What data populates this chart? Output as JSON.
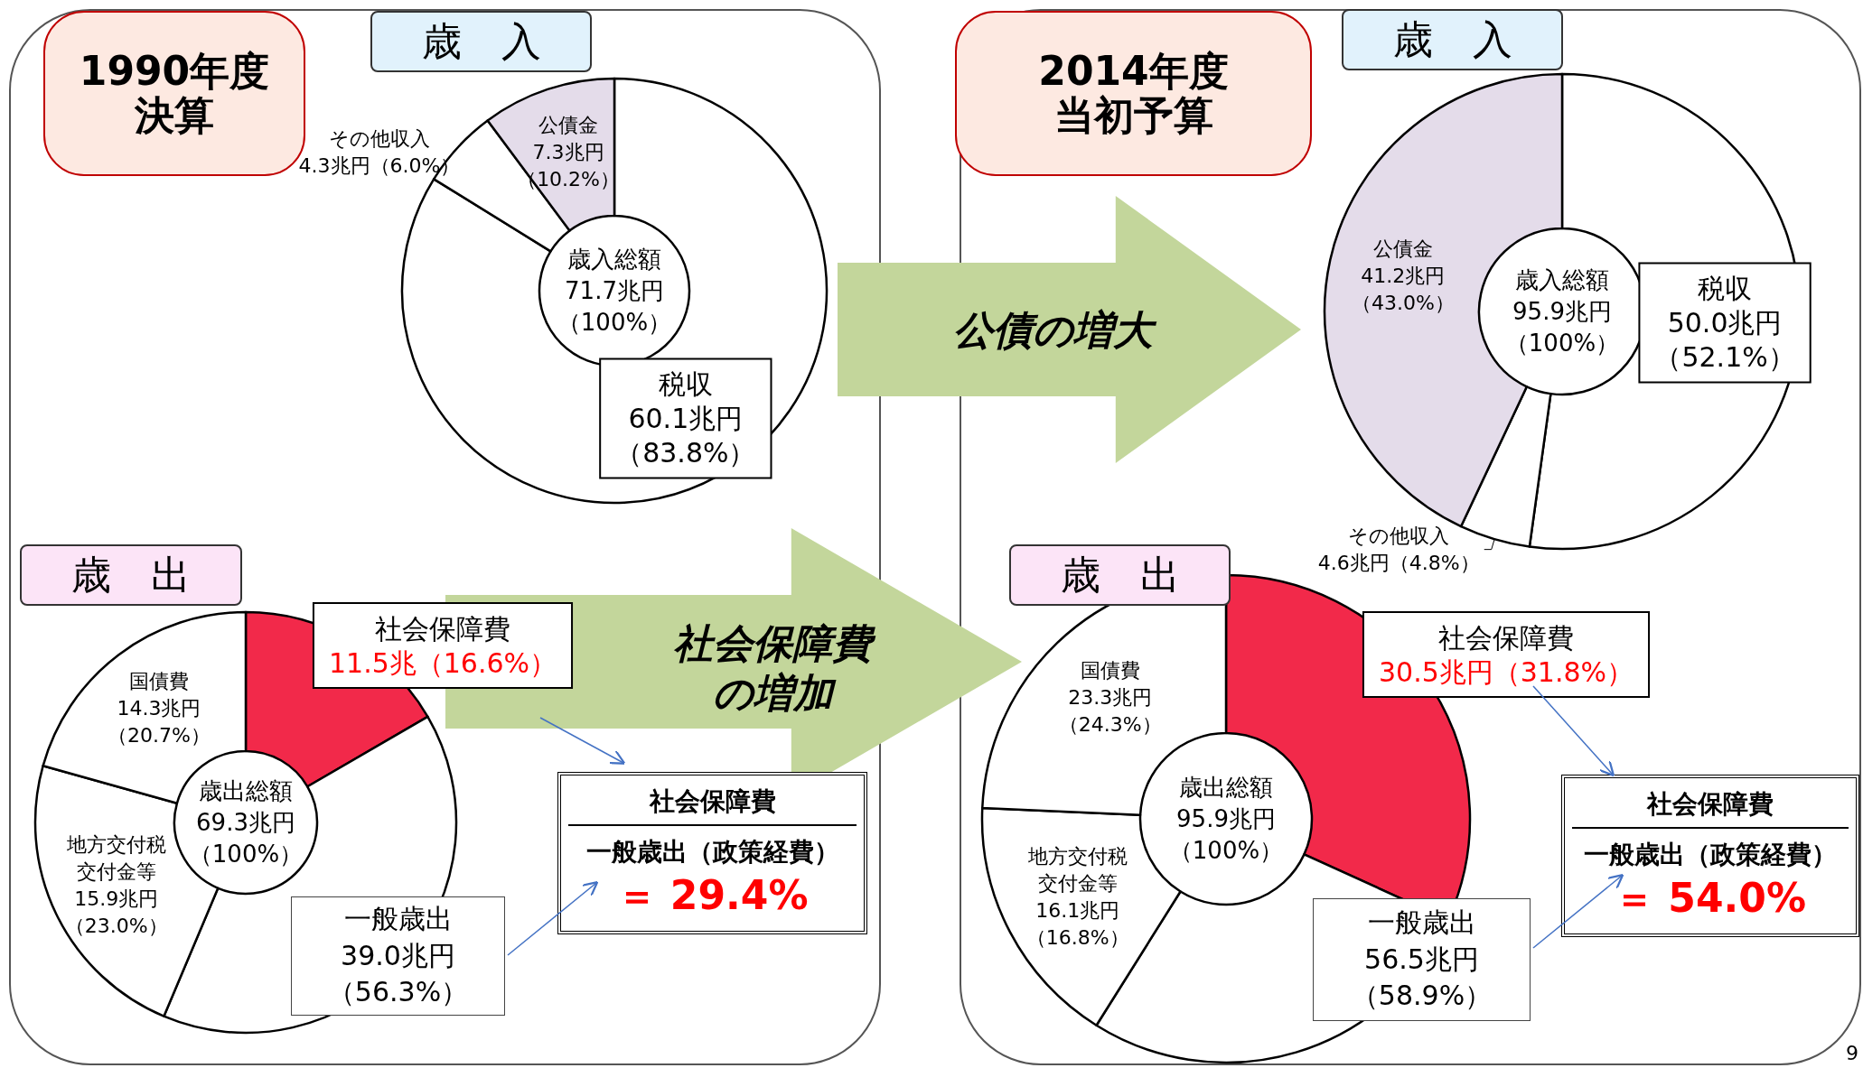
{
  "chart_data": [
    {
      "type": "donut",
      "title": "歳　入",
      "subtitle": "1990年度決算",
      "categories": [
        "税収",
        "その他収入",
        "公債金"
      ],
      "series": [
        {
          "values": [
            60.1,
            4.3,
            7.3
          ],
          "colors": [
            "#ffffff",
            "#ffffff",
            "#e4dcea"
          ],
          "value_labels": [
            "60.1兆円（83.8%）",
            "4.3兆円（6.0%）",
            "7.3兆円（10.2%）"
          ]
        }
      ],
      "annotations": [
        "歳入総額",
        "71.7兆円",
        "（100%）",
        "公債の増大"
      ],
      "legend": false
    },
    {
      "type": "donut",
      "title": "歳　入",
      "subtitle": "2014年度当初予算",
      "categories": [
        "税収",
        "その他収入",
        "公債金"
      ],
      "series": [
        {
          "values": [
            50.0,
            4.6,
            41.2
          ],
          "colors": [
            "#ffffff",
            "#ffffff",
            "#e4dcea"
          ],
          "value_labels": [
            "50.0兆円（52.1%）",
            "4.6兆円（4.8%）",
            "41.2兆円（43.0%）"
          ]
        }
      ],
      "annotations": [
        "歳入総額",
        "95.9兆円",
        "（100%）"
      ],
      "legend": false
    },
    {
      "type": "donut",
      "title": "歳　出",
      "categories": [
        "社会保障費",
        null,
        "地方交付税交付金等",
        "国債費"
      ],
      "series": [
        {
          "values": [
            11.5,
            27.5,
            15.9,
            14.3
          ],
          "colors": [
            "#f2294a",
            "#ffffff",
            "#ffffff",
            "#ffffff"
          ],
          "value_labels": [
            "11.5兆（16.6%）",
            null,
            "15.9兆円（23.0%）",
            "14.3兆円（20.7%）"
          ]
        }
      ],
      "annotations": [
        "歳出総額",
        "69.3兆円",
        "（100%）",
        "社会保障費の増加",
        "社会保障費",
        "一般歳出（政策経費）",
        "＝ 29.4%",
        "一般歳出",
        "39.0兆円",
        "（56.3%）"
      ],
      "legend": false
    },
    {
      "type": "donut",
      "title": "歳　出",
      "categories": [
        "社会保障費",
        null,
        "地方交付税交付金等",
        "国債費"
      ],
      "series": [
        {
          "values": [
            30.5,
            26.0,
            16.1,
            23.3
          ],
          "colors": [
            "#f2294a",
            "#ffffff",
            "#ffffff",
            "#ffffff"
          ],
          "value_labels": [
            "30.5兆円（31.8%）",
            null,
            "16.1兆円（16.8%）",
            "23.3兆円（24.3%）"
          ]
        }
      ],
      "annotations": [
        "歳出総額",
        "95.9兆円",
        "（100%）",
        "社会保障費",
        "一般歳出（政策経費）",
        "＝ 54.0%",
        "9",
        "一般歳出",
        "56.5兆円",
        "（58.9%）"
      ],
      "legend": false
    }
  ]
}
